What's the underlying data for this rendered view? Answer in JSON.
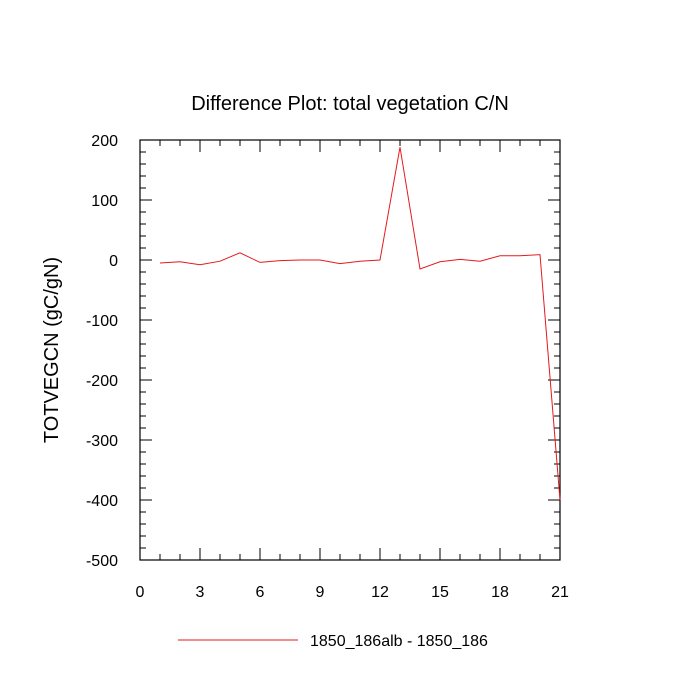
{
  "chart_data": {
    "type": "line",
    "title": "Difference Plot: total vegetation C/N",
    "ylabel": "TOTVEGCN  (gC/gN)",
    "xlim": [
      0,
      21
    ],
    "ylim": [
      -500,
      200
    ],
    "xticks": [
      0,
      3,
      6,
      9,
      12,
      15,
      18,
      21
    ],
    "xtick_labels": [
      "0",
      "3",
      "6",
      "9",
      "12",
      "15",
      "18",
      "21"
    ],
    "yticks": [
      -500,
      -400,
      -300,
      -200,
      -100,
      0,
      100,
      200
    ],
    "ytick_labels": [
      "-500",
      "-400",
      "-300",
      "-200",
      "-100",
      "0",
      "100",
      "200"
    ],
    "legend_position": "bottom",
    "grid": false,
    "series": [
      {
        "name": "1850_186alb - 1850_186",
        "color": "#e41a1c",
        "x": [
          1,
          2,
          3,
          4,
          5,
          6,
          7,
          8,
          9,
          10,
          11,
          12,
          13,
          14,
          15,
          16,
          17,
          18,
          19,
          20,
          21
        ],
        "y": [
          -5,
          -3,
          -8,
          -2,
          12,
          -4,
          -1,
          0,
          0,
          -6,
          -2,
          0,
          188,
          -15,
          -3,
          1,
          -2,
          7,
          7,
          9,
          -400
        ]
      }
    ]
  }
}
